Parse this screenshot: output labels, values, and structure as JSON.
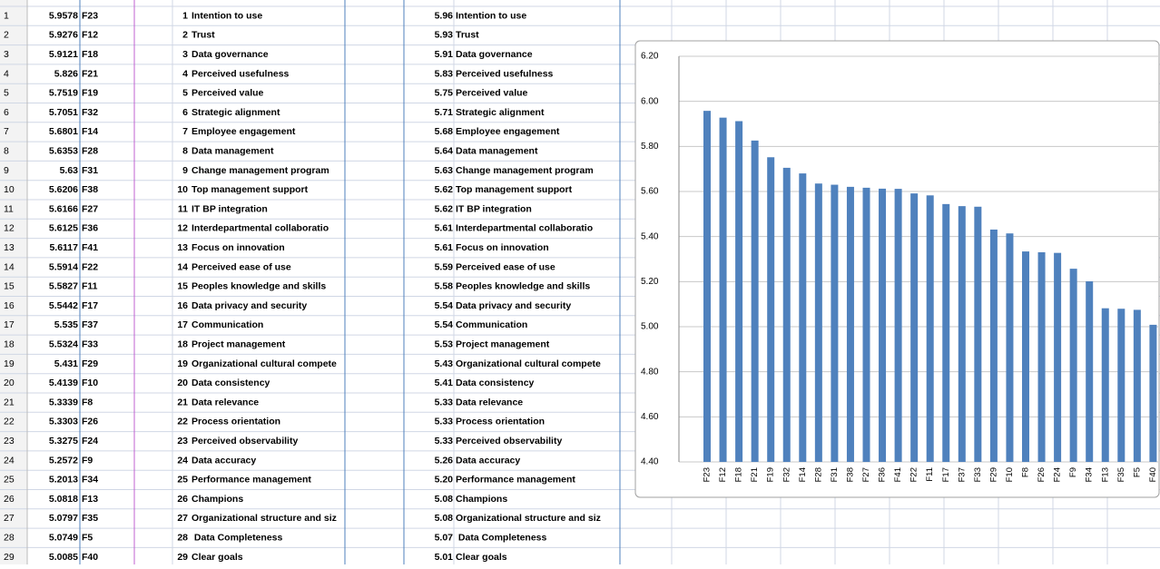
{
  "sheet": {
    "rows": [
      {
        "num": 1,
        "value": "5.9578",
        "code": "F23",
        "rank": 1,
        "name": "Intention to use",
        "rounded": "5.96"
      },
      {
        "num": 2,
        "value": "5.9276",
        "code": "F12",
        "rank": 2,
        "name": "Trust",
        "rounded": "5.93"
      },
      {
        "num": 3,
        "value": "5.9121",
        "code": "F18",
        "rank": 3,
        "name": "Data governance",
        "rounded": "5.91"
      },
      {
        "num": 4,
        "value": "5.826",
        "code": "F21",
        "rank": 4,
        "name": "Perceived usefulness",
        "rounded": "5.83"
      },
      {
        "num": 5,
        "value": "5.7519",
        "code": "F19",
        "rank": 5,
        "name": "Perceived value",
        "rounded": "5.75"
      },
      {
        "num": 6,
        "value": "5.7051",
        "code": "F32",
        "rank": 6,
        "name": "Strategic alignment",
        "rounded": "5.71"
      },
      {
        "num": 7,
        "value": "5.6801",
        "code": "F14",
        "rank": 7,
        "name": "Employee engagement",
        "rounded": "5.68"
      },
      {
        "num": 8,
        "value": "5.6353",
        "code": "F28",
        "rank": 8,
        "name": "Data management",
        "rounded": "5.64"
      },
      {
        "num": 9,
        "value": "5.63",
        "code": "F31",
        "rank": 9,
        "name": "Change management program",
        "rounded": "5.63"
      },
      {
        "num": 10,
        "value": "5.6206",
        "code": "F38",
        "rank": 10,
        "name": "Top management support",
        "rounded": "5.62"
      },
      {
        "num": 11,
        "value": "5.6166",
        "code": "F27",
        "rank": 11,
        "name": "IT BP integration",
        "rounded": "5.62"
      },
      {
        "num": 12,
        "value": "5.6125",
        "code": "F36",
        "rank": 12,
        "name": "Interdepartmental collaboratio",
        "rounded": "5.61"
      },
      {
        "num": 13,
        "value": "5.6117",
        "code": "F41",
        "rank": 13,
        "name": "Focus on innovation",
        "rounded": "5.61"
      },
      {
        "num": 14,
        "value": "5.5914",
        "code": "F22",
        "rank": 14,
        "name": "Perceived ease of use",
        "rounded": "5.59"
      },
      {
        "num": 15,
        "value": "5.5827",
        "code": "F11",
        "rank": 15,
        "name": "Peoples knowledge and skills",
        "rounded": "5.58"
      },
      {
        "num": 16,
        "value": "5.5442",
        "code": "F17",
        "rank": 16,
        "name": "Data privacy and security",
        "rounded": "5.54"
      },
      {
        "num": 17,
        "value": "5.535",
        "code": "F37",
        "rank": 17,
        "name": "Communication",
        "rounded": "5.54"
      },
      {
        "num": 18,
        "value": "5.5324",
        "code": "F33",
        "rank": 18,
        "name": "Project management",
        "rounded": "5.53"
      },
      {
        "num": 19,
        "value": "5.431",
        "code": "F29",
        "rank": 19,
        "name": "Organizational cultural compete",
        "rounded": "5.43"
      },
      {
        "num": 20,
        "value": "5.4139",
        "code": "F10",
        "rank": 20,
        "name": "Data consistency",
        "rounded": "5.41"
      },
      {
        "num": 21,
        "value": "5.3339",
        "code": "F8",
        "rank": 21,
        "name": "Data relevance",
        "rounded": "5.33"
      },
      {
        "num": 22,
        "value": "5.3303",
        "code": "F26",
        "rank": 22,
        "name": "Process orientation",
        "rounded": "5.33"
      },
      {
        "num": 23,
        "value": "5.3275",
        "code": "F24",
        "rank": 23,
        "name": "Perceived observability",
        "rounded": "5.33"
      },
      {
        "num": 24,
        "value": "5.2572",
        "code": "F9",
        "rank": 24,
        "name": "Data accuracy",
        "rounded": "5.26"
      },
      {
        "num": 25,
        "value": "5.2013",
        "code": "F34",
        "rank": 25,
        "name": "Performance management",
        "rounded": "5.20"
      },
      {
        "num": 26,
        "value": "5.0818",
        "code": "F13",
        "rank": 26,
        "name": "Champions",
        "rounded": "5.08"
      },
      {
        "num": 27,
        "value": "5.0797",
        "code": "F35",
        "rank": 27,
        "name": "Organizational structure and siz",
        "rounded": "5.08"
      },
      {
        "num": 28,
        "value": "5.0749",
        "code": "F5",
        "rank": 28,
        "name": " Data Completeness",
        "rounded": "5.07"
      },
      {
        "num": 29,
        "value": "5.0085",
        "code": "F40",
        "rank": 29,
        "name": "Clear goals",
        "rounded": "5.01"
      }
    ]
  },
  "chart_data": {
    "type": "bar",
    "color": "#4f81bd",
    "grid": true,
    "categories": [
      "F23",
      "F12",
      "F18",
      "F21",
      "F19",
      "F32",
      "F14",
      "F28",
      "F31",
      "F38",
      "F27",
      "F36",
      "F41",
      "F22",
      "F11",
      "F17",
      "F37",
      "F33",
      "F29",
      "F10",
      "F8",
      "F26",
      "F24",
      "F9",
      "F34",
      "F13",
      "F35",
      "F5",
      "F40"
    ],
    "values": [
      5.9578,
      5.9276,
      5.9121,
      5.826,
      5.7519,
      5.7051,
      5.6801,
      5.6353,
      5.63,
      5.6206,
      5.6166,
      5.6125,
      5.6117,
      5.5914,
      5.5827,
      5.5442,
      5.535,
      5.5324,
      5.431,
      5.4139,
      5.3339,
      5.3303,
      5.3275,
      5.2572,
      5.2013,
      5.0818,
      5.0797,
      5.0749,
      5.0085
    ],
    "ylim": [
      4.4,
      6.2
    ],
    "yticks": [
      {
        "value": 4.4,
        "label": "4.40"
      },
      {
        "value": 4.6,
        "label": "4.60"
      },
      {
        "value": 4.8,
        "label": "4.80"
      },
      {
        "value": 5.0,
        "label": "5.00"
      },
      {
        "value": 5.2,
        "label": "5.20"
      },
      {
        "value": 5.4,
        "label": "5.40"
      },
      {
        "value": 5.6,
        "label": "5.60"
      },
      {
        "value": 5.8,
        "label": "5.80"
      },
      {
        "value": 6.0,
        "label": "6.00"
      },
      {
        "value": 6.2,
        "label": "6.20"
      }
    ]
  }
}
